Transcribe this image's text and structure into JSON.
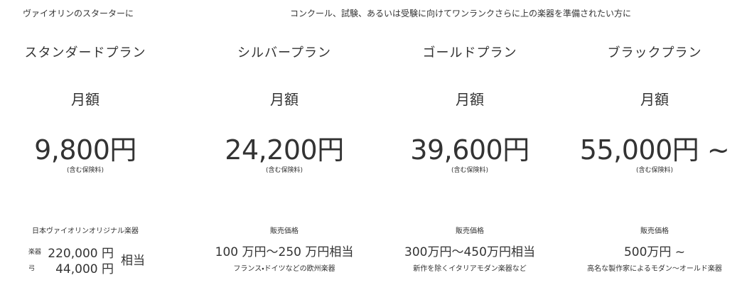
{
  "header": {
    "left": "ヴァイオリンのスターターに",
    "right": "コンクール、試験、あるいは受験に向けてワンランクさらに上の楽器を準備されたい方に"
  },
  "plans": [
    {
      "name": "スタンダードプラン",
      "period": "月額",
      "price": "9,800円",
      "insurance": "(含む保険料)",
      "label": "日本ヴァイオリンオリジナル楽器",
      "items": [
        {
          "label": "楽器",
          "price": "220,000 円"
        },
        {
          "label": "弓",
          "price": "44,000 円"
        }
      ],
      "suffix": "相当"
    },
    {
      "name": "シルバープラン",
      "period": "月額",
      "price": "24,200円",
      "insurance": "(含む保険料)",
      "label": "販売価格",
      "sale": "100 万円〜250 万円相当",
      "note": "フランス・ドイツなどの欧州楽器"
    },
    {
      "name": "ゴールドプラン",
      "period": "月額",
      "price": "39,600円",
      "insurance": "(含む保険料)",
      "label": "販売価格",
      "sale": "300万円〜450万円相当",
      "note": "新作を除くイタリアモダン楽器など"
    },
    {
      "name": "ブラックプラン",
      "period": "月額",
      "price": "55,000円 ~",
      "insurance": "(含む保険料)",
      "label": "販売価格",
      "sale": "500万円 ~",
      "note": "高名な製作家によるモダン〜オールド楽器"
    }
  ]
}
